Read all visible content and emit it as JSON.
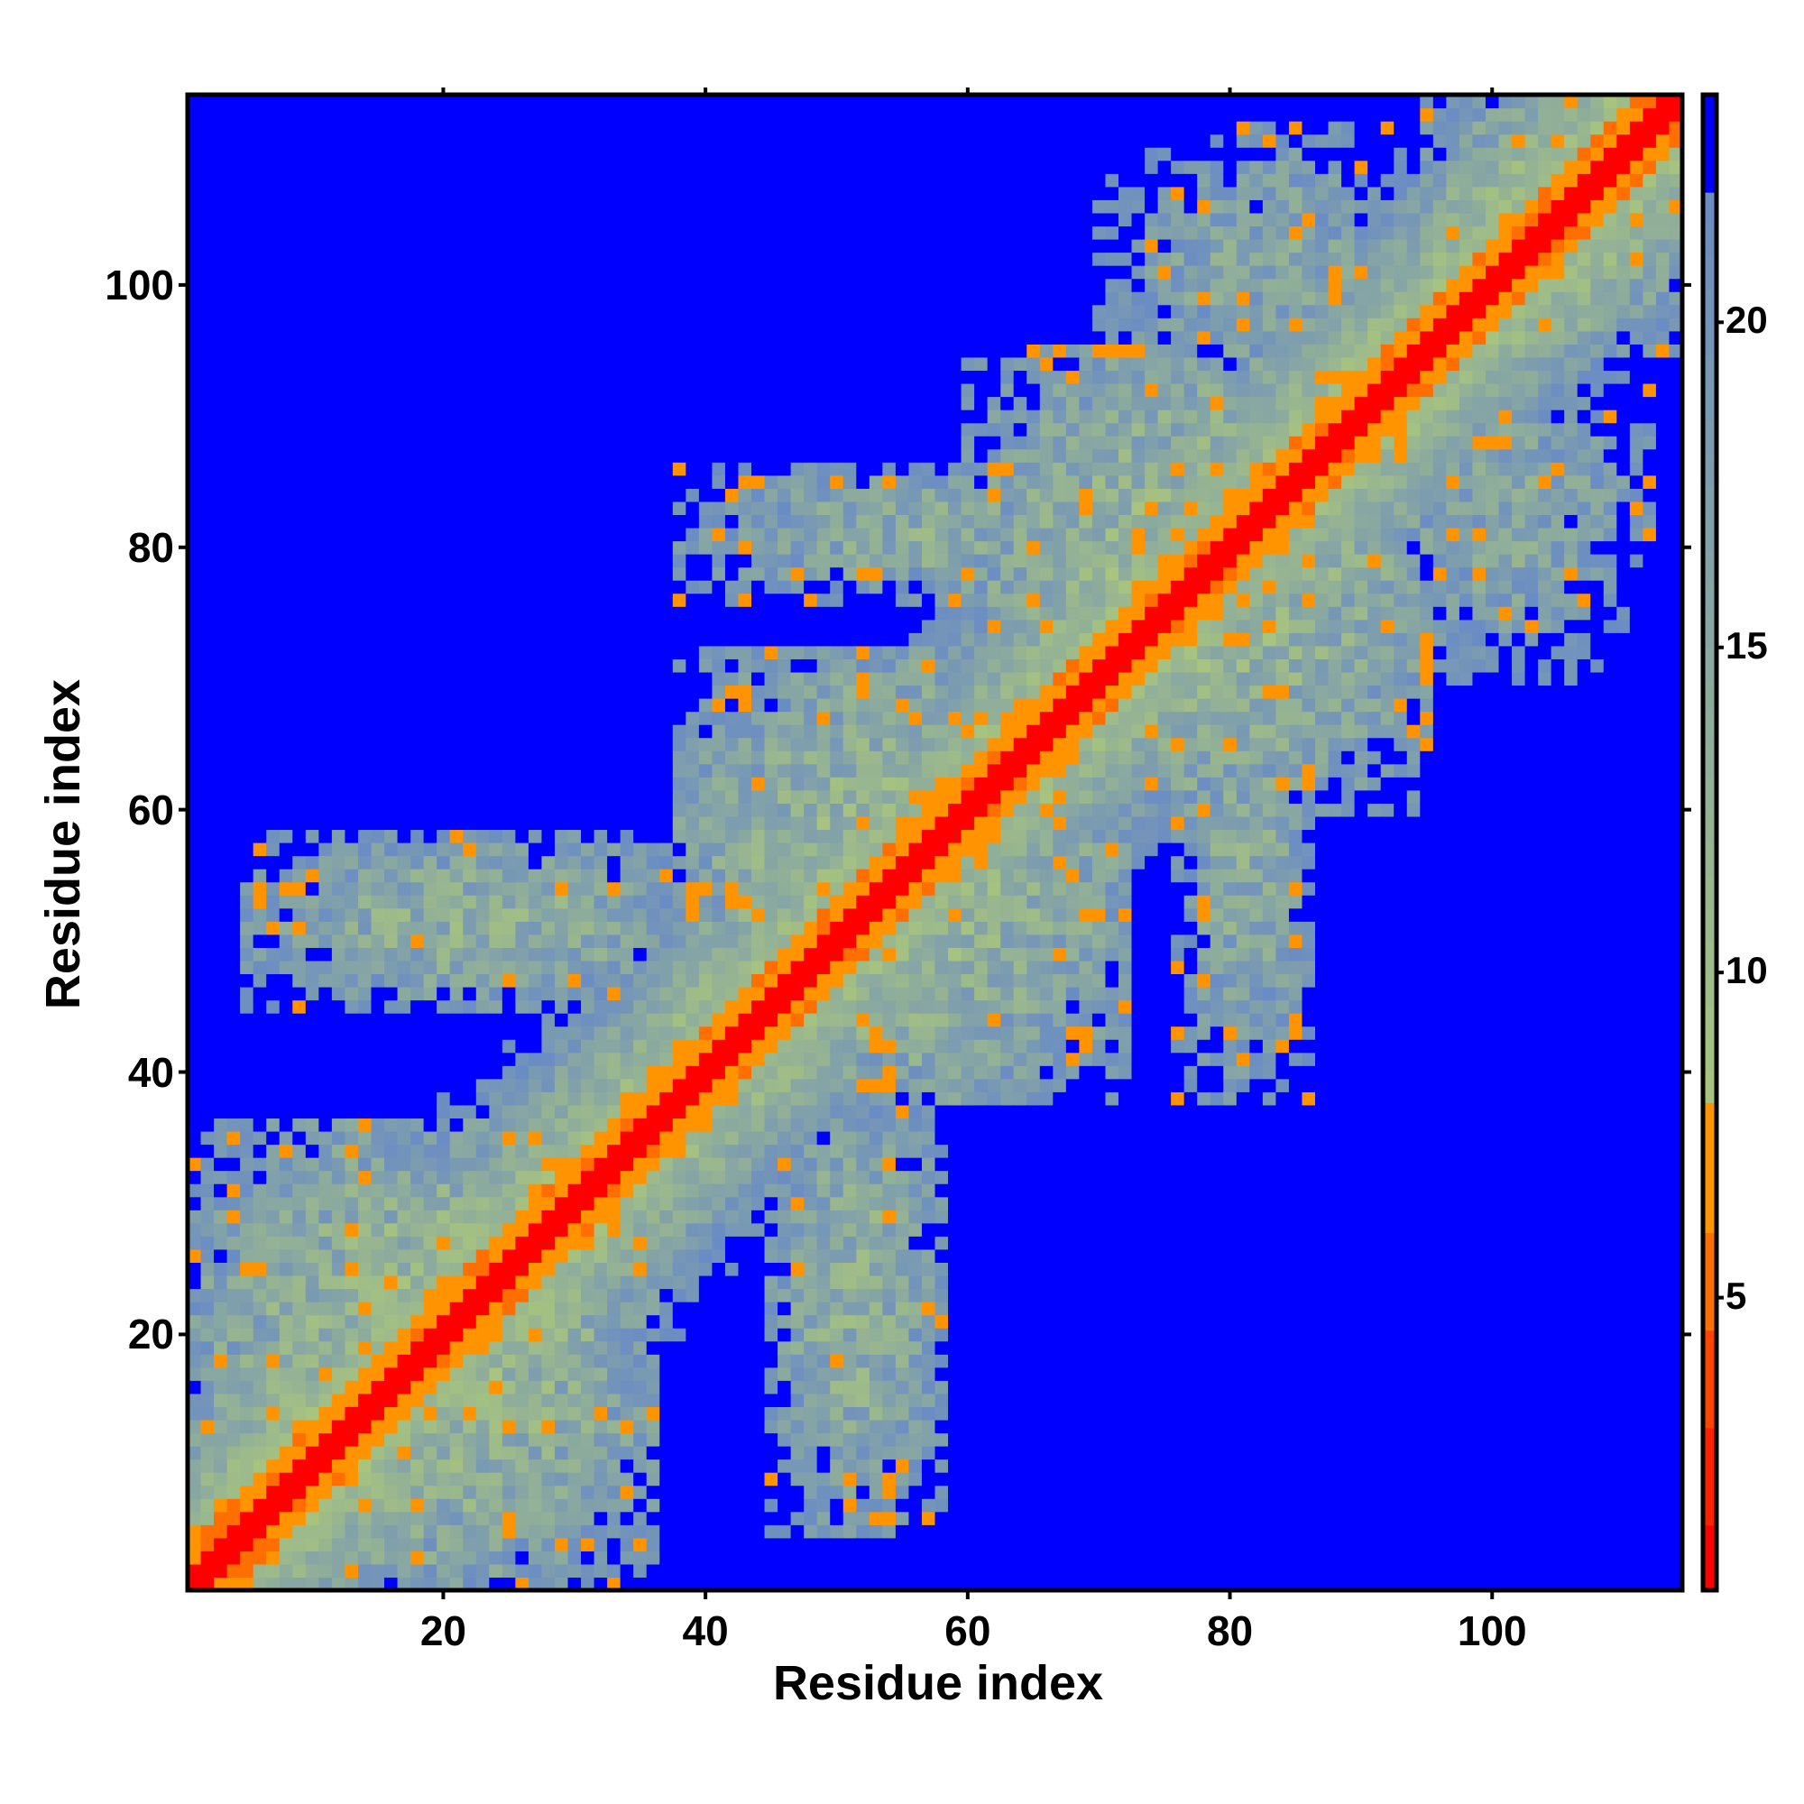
{
  "chart_data": {
    "type": "heatmap",
    "title": "",
    "xlabel": "Residue index",
    "ylabel": "Residue index",
    "n_residues": 114,
    "xlim": [
      0.5,
      114.5
    ],
    "ylim": [
      0.5,
      114.5
    ],
    "xticks": [
      20,
      40,
      60,
      80,
      100
    ],
    "yticks": [
      20,
      40,
      60,
      80,
      100
    ],
    "colorbar": {
      "ticks": [
        5,
        10,
        15,
        20
      ],
      "range": [
        0.5,
        23.5
      ],
      "stops": [
        {
          "max": 1.5,
          "color": "#ff0000"
        },
        {
          "max": 3,
          "color": "#ff2000"
        },
        {
          "max": 4.5,
          "color": "#ff4400"
        },
        {
          "max": 6,
          "color": "#ff6e00"
        },
        {
          "max": 8,
          "color": "#ff9400"
        },
        {
          "max": 22,
          "from": "#a8c47e",
          "to": "#6a8cc4"
        },
        {
          "max": 99,
          "color": "#0000ff"
        }
      ]
    },
    "symmetric": true,
    "diagonal_band": {
      "contact_distance": 1.0,
      "near_distance": 5.5,
      "slope_per_residue": 1.0
    },
    "contact_regions": [
      {
        "x": [
          1,
          36
        ],
        "y": [
          1,
          36
        ],
        "distance": 12
      },
      {
        "x": [
          5,
          40
        ],
        "y": [
          45,
          58
        ],
        "distance": 14
      },
      {
        "x": [
          38,
          72
        ],
        "y": [
          38,
          72
        ],
        "distance": 12
      },
      {
        "x": [
          38,
          76
        ],
        "y": [
          76,
          86
        ],
        "distance": 15
      },
      {
        "x": [
          60,
          95
        ],
        "y": [
          60,
          95
        ],
        "distance": 12
      },
      {
        "x": [
          70,
          92
        ],
        "y": [
          92,
          110
        ],
        "distance": 16
      },
      {
        "x": [
          92,
          112
        ],
        "y": [
          78,
          92
        ],
        "distance": 16
      },
      {
        "x": [
          95,
          114
        ],
        "y": [
          95,
          114
        ],
        "distance": 12
      }
    ]
  }
}
